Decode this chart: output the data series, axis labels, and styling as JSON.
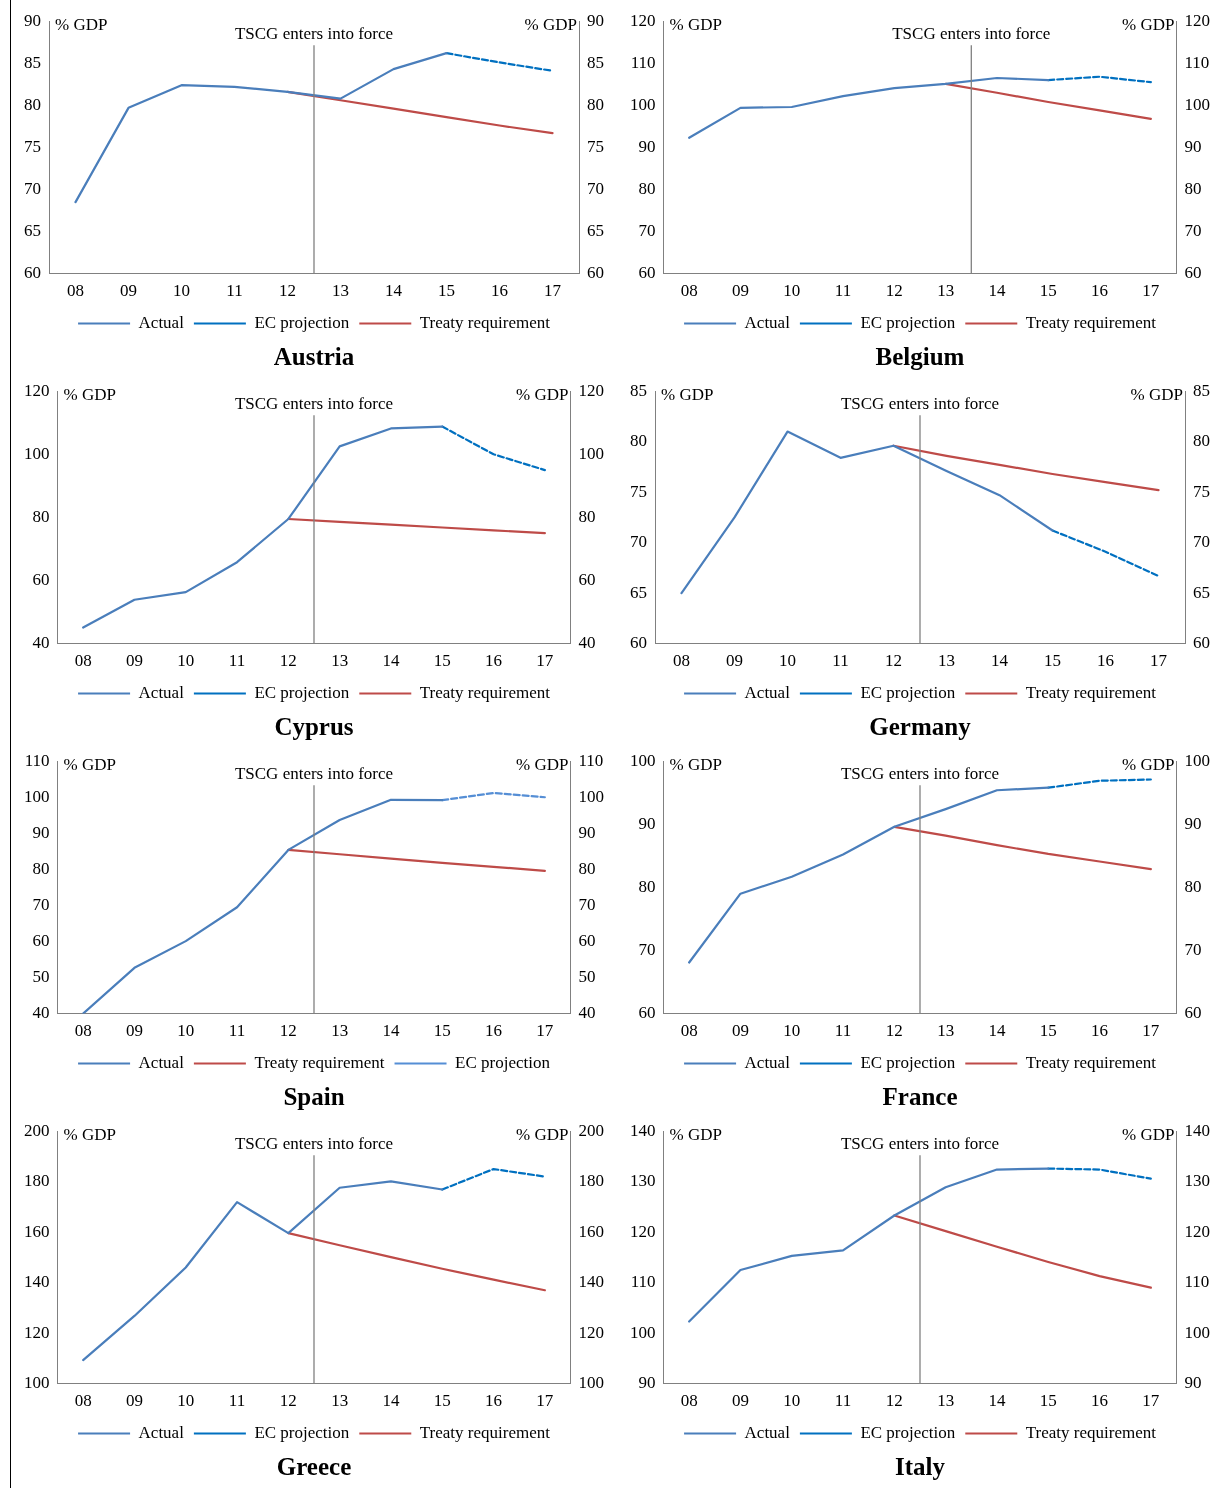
{
  "chart_data": [
    {
      "type": "line",
      "title": "Austria",
      "ylabel": "% GDP",
      "y2label": "% GDP",
      "xlim": [
        7.5,
        17.5
      ],
      "xticks": [
        {
          "value": 8,
          "label": "08"
        },
        {
          "value": 9,
          "label": "09"
        },
        {
          "value": 10,
          "label": "10"
        },
        {
          "value": 11,
          "label": "11"
        },
        {
          "value": 12,
          "label": "12"
        },
        {
          "value": 13,
          "label": "13"
        },
        {
          "value": 14,
          "label": "14"
        },
        {
          "value": 15,
          "label": "15"
        },
        {
          "value": 16,
          "label": "16"
        },
        {
          "value": 17,
          "label": "17"
        }
      ],
      "ylim": [
        60,
        90
      ],
      "yticks": [
        60,
        65,
        70,
        75,
        80,
        85,
        90
      ],
      "y2lim": [
        60,
        90
      ],
      "y2ticks": [
        60,
        65,
        70,
        75,
        80,
        85,
        90
      ],
      "grid": false,
      "legend": "bottom",
      "marker": "none",
      "ref_lines": [
        {
          "axis": "x",
          "value": 12.5,
          "label": "TSCG enters into force",
          "color": "#808080"
        }
      ],
      "series": [
        {
          "name": "Actual",
          "color": "#4a7ebb",
          "line_style": "solid",
          "x": [
            8,
            9,
            10,
            11,
            12,
            13,
            14,
            15
          ],
          "values": [
            68.5,
            79.7,
            82.4,
            82.2,
            81.6,
            80.8,
            84.3,
            86.2
          ]
        },
        {
          "name": "EC projection",
          "color": "#0070c0",
          "line_style": "dashed",
          "x": [
            15,
            16,
            17
          ],
          "values": [
            86.2,
            85.1,
            84.1
          ]
        },
        {
          "name": "Treaty requirement",
          "color": "#be4b48",
          "line_style": "solid",
          "x": [
            12,
            13,
            14,
            15,
            16,
            17
          ],
          "values": [
            81.6,
            80.6,
            79.6,
            78.6,
            77.6,
            76.7
          ]
        }
      ]
    },
    {
      "type": "line",
      "title": "Belgium",
      "ylabel": "% GDP",
      "y2label": "% GDP",
      "xlim": [
        7.5,
        17.5
      ],
      "xticks": [
        {
          "value": 8,
          "label": "08"
        },
        {
          "value": 9,
          "label": "09"
        },
        {
          "value": 10,
          "label": "10"
        },
        {
          "value": 11,
          "label": "11"
        },
        {
          "value": 12,
          "label": "12"
        },
        {
          "value": 13,
          "label": "13"
        },
        {
          "value": 14,
          "label": "14"
        },
        {
          "value": 15,
          "label": "15"
        },
        {
          "value": 16,
          "label": "16"
        },
        {
          "value": 17,
          "label": "17"
        }
      ],
      "ylim": [
        60,
        120
      ],
      "yticks": [
        60,
        70,
        80,
        90,
        100,
        110,
        120
      ],
      "y2lim": [
        60,
        120
      ],
      "y2ticks": [
        60,
        70,
        80,
        90,
        100,
        110,
        120
      ],
      "grid": false,
      "legend": "bottom",
      "marker": "none",
      "ref_lines": [
        {
          "axis": "x",
          "value": 13.5,
          "label": "TSCG enters into force",
          "color": "#808080"
        }
      ],
      "series": [
        {
          "name": "Actual",
          "color": "#4a7ebb",
          "line_style": "solid",
          "x": [
            8,
            9,
            10,
            11,
            12,
            13,
            14,
            15
          ],
          "values": [
            92.3,
            99.4,
            99.6,
            102.2,
            104.1,
            105.1,
            106.5,
            106.0
          ]
        },
        {
          "name": "EC projection",
          "color": "#0070c0",
          "line_style": "dashed",
          "x": [
            15,
            16,
            17
          ],
          "values": [
            106.0,
            106.8,
            105.5
          ]
        },
        {
          "name": "Treaty requirement",
          "color": "#be4b48",
          "line_style": "solid",
          "x": [
            13,
            14,
            15,
            16,
            17
          ],
          "values": [
            105.1,
            103.0,
            100.8,
            98.8,
            96.8
          ]
        }
      ]
    },
    {
      "type": "line",
      "title": "Cyprus",
      "ylabel": "% GDP",
      "y2label": "% GDP",
      "xlim": [
        7.5,
        17.5
      ],
      "xticks": [
        {
          "value": 8,
          "label": "08"
        },
        {
          "value": 9,
          "label": "09"
        },
        {
          "value": 10,
          "label": "10"
        },
        {
          "value": 11,
          "label": "11"
        },
        {
          "value": 12,
          "label": "12"
        },
        {
          "value": 13,
          "label": "13"
        },
        {
          "value": 14,
          "label": "14"
        },
        {
          "value": 15,
          "label": "15"
        },
        {
          "value": 16,
          "label": "16"
        },
        {
          "value": 17,
          "label": "17"
        }
      ],
      "ylim": [
        40,
        120
      ],
      "yticks": [
        40,
        60,
        80,
        100,
        120
      ],
      "y2lim": [
        40,
        120
      ],
      "y2ticks": [
        40,
        60,
        80,
        100,
        120
      ],
      "grid": false,
      "legend": "bottom",
      "marker": "none",
      "ref_lines": [
        {
          "axis": "x",
          "value": 12.5,
          "label": "TSCG enters into force",
          "color": "#808080"
        }
      ],
      "series": [
        {
          "name": "Actual",
          "color": "#4a7ebb",
          "line_style": "solid",
          "x": [
            8,
            9,
            10,
            11,
            12,
            13,
            14,
            15
          ],
          "values": [
            45.1,
            53.9,
            56.3,
            65.8,
            79.5,
            102.5,
            108.2,
            108.8
          ]
        },
        {
          "name": "EC projection",
          "color": "#0070c0",
          "line_style": "dashed",
          "x": [
            15,
            16,
            17
          ],
          "values": [
            108.8,
            100.0,
            95.0
          ]
        },
        {
          "name": "Treaty requirement",
          "color": "#be4b48",
          "line_style": "solid",
          "x": [
            12,
            13,
            14,
            15,
            16,
            17
          ],
          "values": [
            79.5,
            78.6,
            77.7,
            76.8,
            75.9,
            75.0
          ]
        }
      ]
    },
    {
      "type": "line",
      "title": "Germany",
      "ylabel": "% GDP",
      "y2label": "% GDP",
      "xlim": [
        7.5,
        17.5
      ],
      "xticks": [
        {
          "value": 8,
          "label": "08"
        },
        {
          "value": 9,
          "label": "09"
        },
        {
          "value": 10,
          "label": "10"
        },
        {
          "value": 11,
          "label": "11"
        },
        {
          "value": 12,
          "label": "12"
        },
        {
          "value": 13,
          "label": "13"
        },
        {
          "value": 14,
          "label": "14"
        },
        {
          "value": 15,
          "label": "15"
        },
        {
          "value": 16,
          "label": "16"
        },
        {
          "value": 17,
          "label": "17"
        }
      ],
      "ylim": [
        60,
        85
      ],
      "yticks": [
        60,
        65,
        70,
        75,
        80,
        85
      ],
      "y2lim": [
        60,
        85
      ],
      "y2ticks": [
        60,
        65,
        70,
        75,
        80,
        85
      ],
      "grid": false,
      "legend": "bottom",
      "marker": "none",
      "ref_lines": [
        {
          "axis": "x",
          "value": 12.5,
          "label": "TSCG enters into force",
          "color": "#808080"
        }
      ],
      "series": [
        {
          "name": "Actual",
          "color": "#4a7ebb",
          "line_style": "solid",
          "x": [
            8,
            9,
            10,
            11,
            12,
            13,
            14,
            15
          ],
          "values": [
            65.0,
            72.5,
            81.0,
            78.4,
            79.6,
            77.1,
            74.7,
            71.2
          ]
        },
        {
          "name": "EC projection",
          "color": "#0070c0",
          "line_style": "dashed",
          "x": [
            15,
            16,
            17
          ],
          "values": [
            71.2,
            69.1,
            66.7
          ]
        },
        {
          "name": "Treaty requirement",
          "color": "#be4b48",
          "line_style": "solid",
          "x": [
            12,
            13,
            14,
            15,
            16,
            17
          ],
          "values": [
            79.6,
            78.6,
            77.7,
            76.8,
            76.0,
            75.2
          ]
        }
      ]
    },
    {
      "type": "line",
      "title": "Spain",
      "ylabel": "% GDP",
      "y2label": "% GDP",
      "xlim": [
        7.5,
        17.5
      ],
      "xticks": [
        {
          "value": 8,
          "label": "08"
        },
        {
          "value": 9,
          "label": "09"
        },
        {
          "value": 10,
          "label": "10"
        },
        {
          "value": 11,
          "label": "11"
        },
        {
          "value": 12,
          "label": "12"
        },
        {
          "value": 13,
          "label": "13"
        },
        {
          "value": 14,
          "label": "14"
        },
        {
          "value": 15,
          "label": "15"
        },
        {
          "value": 16,
          "label": "16"
        },
        {
          "value": 17,
          "label": "17"
        }
      ],
      "ylim": [
        40,
        110
      ],
      "yticks": [
        40,
        50,
        60,
        70,
        80,
        90,
        100,
        110
      ],
      "y2lim": [
        40,
        110
      ],
      "y2ticks": [
        40,
        50,
        60,
        70,
        80,
        90,
        100,
        110
      ],
      "grid": false,
      "legend": "bottom",
      "marker": "none",
      "ref_lines": [
        {
          "axis": "x",
          "value": 12.5,
          "label": "TSCG enters into force",
          "color": "#808080"
        }
      ],
      "series": [
        {
          "name": "Actual",
          "color": "#4a7ebb",
          "line_style": "solid",
          "x": [
            8,
            9,
            10,
            11,
            12,
            13,
            14,
            15
          ],
          "values": [
            40.0,
            52.7,
            60.1,
            69.5,
            85.4,
            93.7,
            99.3,
            99.2
          ]
        },
        {
          "name": "Treaty requirement",
          "color": "#be4b48",
          "line_style": "solid",
          "x": [
            12,
            13,
            14,
            15,
            16,
            17
          ],
          "values": [
            85.4,
            84.2,
            83.0,
            81.8,
            80.7,
            79.6
          ]
        },
        {
          "name": "EC projection",
          "color": "#558ed5",
          "line_style": "dashed",
          "x": [
            15,
            16,
            17
          ],
          "values": [
            99.2,
            101.2,
            100.0
          ]
        }
      ]
    },
    {
      "type": "line",
      "title": "France",
      "ylabel": "% GDP",
      "y2label": "% GDP",
      "xlim": [
        7.5,
        17.5
      ],
      "xticks": [
        {
          "value": 8,
          "label": "08"
        },
        {
          "value": 9,
          "label": "09"
        },
        {
          "value": 10,
          "label": "10"
        },
        {
          "value": 11,
          "label": "11"
        },
        {
          "value": 12,
          "label": "12"
        },
        {
          "value": 13,
          "label": "13"
        },
        {
          "value": 14,
          "label": "14"
        },
        {
          "value": 15,
          "label": "15"
        },
        {
          "value": 16,
          "label": "16"
        },
        {
          "value": 17,
          "label": "17"
        }
      ],
      "ylim": [
        60,
        100
      ],
      "yticks": [
        60,
        70,
        80,
        90,
        100
      ],
      "y2lim": [
        60,
        100
      ],
      "y2ticks": [
        60,
        70,
        80,
        90,
        100
      ],
      "grid": false,
      "legend": "bottom",
      "marker": "none",
      "ref_lines": [
        {
          "axis": "x",
          "value": 12.5,
          "label": "TSCG enters into force",
          "color": "#808080"
        }
      ],
      "series": [
        {
          "name": "Actual",
          "color": "#4a7ebb",
          "line_style": "solid",
          "x": [
            8,
            9,
            10,
            11,
            12,
            13,
            14,
            15
          ],
          "values": [
            68.1,
            79.0,
            81.7,
            85.2,
            89.6,
            92.4,
            95.4,
            95.8
          ]
        },
        {
          "name": "EC projection",
          "color": "#0070c0",
          "line_style": "dashed",
          "x": [
            15,
            16,
            17
          ],
          "values": [
            95.8,
            96.9,
            97.1
          ]
        },
        {
          "name": "Treaty requirement",
          "color": "#be4b48",
          "line_style": "solid",
          "x": [
            12,
            13,
            14,
            15,
            16,
            17
          ],
          "values": [
            89.6,
            88.2,
            86.7,
            85.3,
            84.1,
            82.9
          ]
        }
      ]
    },
    {
      "type": "line",
      "title": "Greece",
      "ylabel": "% GDP",
      "y2label": "% GDP",
      "xlim": [
        7.5,
        17.5
      ],
      "xticks": [
        {
          "value": 8,
          "label": "08"
        },
        {
          "value": 9,
          "label": "09"
        },
        {
          "value": 10,
          "label": "10"
        },
        {
          "value": 11,
          "label": "11"
        },
        {
          "value": 12,
          "label": "12"
        },
        {
          "value": 13,
          "label": "13"
        },
        {
          "value": 14,
          "label": "14"
        },
        {
          "value": 15,
          "label": "15"
        },
        {
          "value": 16,
          "label": "16"
        },
        {
          "value": 17,
          "label": "17"
        }
      ],
      "ylim": [
        100,
        200
      ],
      "yticks": [
        100,
        120,
        140,
        160,
        180,
        200
      ],
      "y2lim": [
        100,
        200
      ],
      "y2ticks": [
        100,
        120,
        140,
        160,
        180,
        200
      ],
      "grid": false,
      "legend": "bottom",
      "marker": "none",
      "ref_lines": [
        {
          "axis": "x",
          "value": 12.5,
          "label": "TSCG enters into force",
          "color": "#808080"
        }
      ],
      "series": [
        {
          "name": "Actual",
          "color": "#4a7ebb",
          "line_style": "solid",
          "x": [
            8,
            9,
            10,
            11,
            12,
            13,
            14,
            15
          ],
          "values": [
            109.3,
            126.8,
            146.0,
            171.9,
            159.6,
            177.6,
            180.1,
            176.9
          ]
        },
        {
          "name": "EC projection",
          "color": "#0070c0",
          "line_style": "dashed",
          "x": [
            15,
            16,
            17
          ],
          "values": [
            176.9,
            185.0,
            182.0
          ]
        },
        {
          "name": "Treaty requirement",
          "color": "#be4b48",
          "line_style": "solid",
          "x": [
            12,
            13,
            14,
            15,
            16,
            17
          ],
          "values": [
            159.6,
            154.8,
            150.1,
            145.5,
            141.2,
            137.0
          ]
        }
      ]
    },
    {
      "type": "line",
      "title": "Italy",
      "ylabel": "% GDP",
      "y2label": "% GDP",
      "xlim": [
        7.5,
        17.5
      ],
      "xticks": [
        {
          "value": 8,
          "label": "08"
        },
        {
          "value": 9,
          "label": "09"
        },
        {
          "value": 10,
          "label": "10"
        },
        {
          "value": 11,
          "label": "11"
        },
        {
          "value": 12,
          "label": "12"
        },
        {
          "value": 13,
          "label": "13"
        },
        {
          "value": 14,
          "label": "14"
        },
        {
          "value": 15,
          "label": "15"
        },
        {
          "value": 16,
          "label": "16"
        },
        {
          "value": 17,
          "label": "17"
        }
      ],
      "ylim": [
        90,
        140
      ],
      "yticks": [
        90,
        100,
        110,
        120,
        130,
        140
      ],
      "y2lim": [
        90,
        140
      ],
      "y2ticks": [
        90,
        100,
        110,
        120,
        130,
        140
      ],
      "grid": false,
      "legend": "bottom",
      "marker": "none",
      "ref_lines": [
        {
          "axis": "x",
          "value": 12.5,
          "label": "TSCG enters into force",
          "color": "#808080"
        }
      ],
      "series": [
        {
          "name": "Actual",
          "color": "#4a7ebb",
          "line_style": "solid",
          "x": [
            8,
            9,
            10,
            11,
            12,
            13,
            14,
            15
          ],
          "values": [
            102.3,
            112.5,
            115.3,
            116.4,
            123.3,
            128.9,
            132.4,
            132.6
          ]
        },
        {
          "name": "EC projection",
          "color": "#0070c0",
          "line_style": "dashed",
          "x": [
            15,
            16,
            17
          ],
          "values": [
            132.6,
            132.4,
            130.6
          ]
        },
        {
          "name": "Treaty requirement",
          "color": "#be4b48",
          "line_style": "solid",
          "x": [
            12,
            13,
            14,
            15,
            16,
            17
          ],
          "values": [
            123.3,
            120.2,
            117.1,
            114.1,
            111.3,
            109.0
          ]
        }
      ]
    }
  ]
}
